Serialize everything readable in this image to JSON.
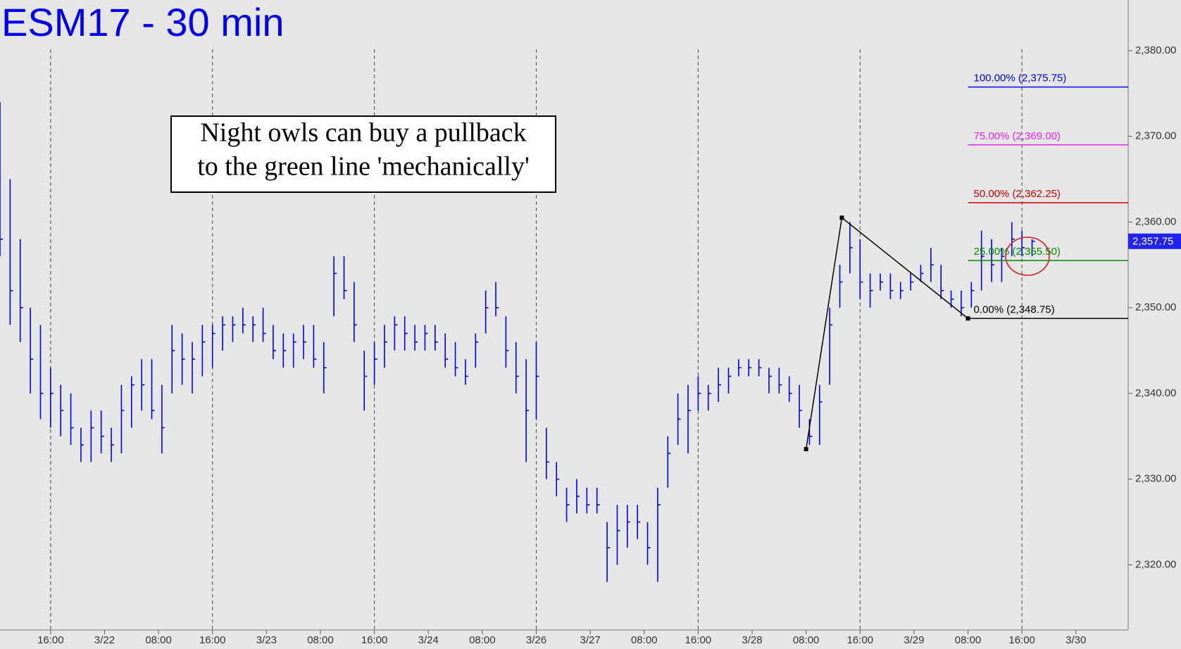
{
  "chart_data": {
    "type": "ohlc",
    "title": "ESM17 - 30 min",
    "annotation": [
      "Night owls can buy a pullback",
      "to the green line 'mechanically'"
    ],
    "color": "#0000ee",
    "series": {
      "x": [
        0,
        3,
        6,
        9,
        12,
        15,
        18,
        21,
        24,
        27,
        30,
        33,
        36,
        39,
        42,
        45,
        48,
        51,
        54,
        57,
        60,
        63,
        66,
        69,
        72,
        75,
        78,
        81,
        84,
        87,
        90,
        93,
        96,
        99,
        102,
        105,
        108,
        111,
        114,
        117,
        120,
        123,
        126,
        129,
        132,
        135,
        138,
        141,
        144,
        147,
        150,
        153,
        156,
        159,
        162,
        165,
        168,
        171,
        174,
        177,
        180,
        183,
        186,
        189,
        192,
        195,
        198,
        201,
        204,
        207,
        210,
        213,
        216,
        219,
        222,
        225,
        228,
        231,
        234,
        237,
        240,
        243,
        246,
        249,
        252,
        255,
        258,
        261,
        264,
        267,
        270,
        273,
        276,
        279,
        282,
        285,
        288,
        291,
        294,
        297,
        300,
        303,
        306
      ],
      "high": [
        2374,
        2365,
        2358,
        2350,
        2348,
        2343,
        2341,
        2340,
        2336,
        2338,
        2338,
        2336,
        2341,
        2342,
        2344,
        2344,
        2341,
        2348,
        2347,
        2346,
        2348,
        2348,
        2349,
        2349,
        2350,
        2349,
        2350,
        2348,
        2347,
        2347,
        2348,
        2348,
        2346,
        2356,
        2356,
        2353,
        2345,
        2346,
        2348,
        2349,
        2349,
        2348,
        2348,
        2348,
        2347,
        2346,
        2344,
        2347,
        2352,
        2353,
        2349,
        2346,
        2344,
        2346,
        2336,
        2332,
        2329,
        2330,
        2329,
        2329,
        2325,
        2327,
        2327,
        2327,
        2325,
        2329,
        2335,
        2340,
        2341,
        2342,
        2341,
        2343,
        2343,
        2344,
        2344,
        2344,
        2343,
        2343,
        2342,
        2341,
        2337,
        2341,
        2350,
        2355,
        2360,
        2358,
        2354,
        2354,
        2354,
        2353,
        2354,
        2355,
        2357,
        2355,
        2352,
        2352,
        2353,
        2359,
        2358,
        2357,
        2360,
        2359,
        2358
      ],
      "low": [
        2356,
        2348,
        2346,
        2340,
        2337,
        2336,
        2335,
        2334,
        2332,
        2332,
        2333,
        2332,
        2333,
        2336,
        2338,
        2337,
        2333,
        2340,
        2341,
        2340,
        2342,
        2343,
        2345,
        2346,
        2347,
        2346,
        2346,
        2344,
        2343,
        2343,
        2344,
        2343,
        2340,
        2349,
        2351,
        2346,
        2338,
        2341,
        2343,
        2345,
        2345,
        2345,
        2345,
        2345,
        2343,
        2342,
        2341,
        2343,
        2347,
        2349,
        2343,
        2340,
        2332,
        2337,
        2330,
        2328,
        2325,
        2326,
        2326,
        2326,
        2318,
        2320,
        2322,
        2323,
        2320,
        2318,
        2329,
        2334,
        2333,
        2338,
        2338,
        2339,
        2340,
        2342,
        2342,
        2342,
        2340,
        2340,
        2339,
        2336,
        2334,
        2334,
        2341,
        2350,
        2354,
        2351,
        2350,
        2352,
        2351,
        2351,
        2352,
        2353,
        2353,
        2351,
        2350,
        2349,
        2350,
        2352,
        2353,
        2353,
        2356,
        2356,
        2356
      ],
      "close": [
        2358,
        2352,
        2350,
        2344,
        2340,
        2340,
        2338,
        2336,
        2334,
        2336,
        2335,
        2334,
        2338,
        2341,
        2341,
        2338,
        2336,
        2345,
        2344,
        2344,
        2346,
        2347,
        2348,
        2348,
        2348,
        2348,
        2347,
        2345,
        2345,
        2346,
        2346,
        2344,
        2343,
        2354,
        2352,
        2348,
        2342,
        2344,
        2346,
        2348,
        2347,
        2346,
        2347,
        2346,
        2344,
        2343,
        2342,
        2346,
        2350,
        2350,
        2345,
        2342,
        2338,
        2342,
        2332,
        2330,
        2327,
        2328,
        2327,
        2327,
        2322,
        2324,
        2325,
        2325,
        2322,
        2327,
        2333,
        2337,
        2338,
        2340,
        2340,
        2341,
        2342,
        2343,
        2343,
        2343,
        2342,
        2341,
        2340,
        2338,
        2335,
        2339,
        2348,
        2353,
        2357,
        2353,
        2352,
        2353,
        2352,
        2352,
        2353,
        2354,
        2355,
        2352,
        2351,
        2350,
        2352,
        2356,
        2355,
        2356,
        2358,
        2357,
        2357.75
      ]
    },
    "levels": [
      {
        "value": 2375.75,
        "label": "100.00% (2,375.75)",
        "color": "#0000ee"
      },
      {
        "value": 2369.0,
        "label": "75.00% (2,369.00)",
        "color": "#ee22ee"
      },
      {
        "value": 2362.25,
        "label": "50.00% (2,362.25)",
        "color": "#cc0000"
      },
      {
        "value": 2355.5,
        "label": "25.00% (2,355.50)",
        "color": "#008800"
      },
      {
        "value": 2348.75,
        "label": "0.00% (2,348.75)",
        "color": "#000000"
      }
    ],
    "levels_start": 287,
    "swing": {
      "x": [
        239,
        249.6,
        287
      ],
      "y": [
        2333.5,
        2360.5,
        2348.75
      ]
    },
    "last": {
      "value": 2357.75,
      "label": "2,357.75"
    },
    "xlim": [
      0,
      334.5
    ],
    "ylim": [
      2312.4,
      2385.9
    ],
    "yticks": [
      {
        "value": 2320,
        "label": "2,320.00"
      },
      {
        "value": 2330,
        "label": "2,330.00"
      },
      {
        "value": 2340,
        "label": "2,340.00"
      },
      {
        "value": 2350,
        "label": "2,350.00"
      },
      {
        "value": 2360,
        "label": "2,360.00"
      },
      {
        "value": 2370,
        "label": "2,370.00"
      },
      {
        "value": 2380,
        "label": "2,380.00"
      }
    ],
    "xticks": [
      {
        "value": 15,
        "label": "16:00",
        "grid": true
      },
      {
        "value": 31,
        "label": "3/22"
      },
      {
        "value": 47,
        "label": "08:00"
      },
      {
        "value": 63,
        "label": "16:00",
        "grid": true
      },
      {
        "value": 79,
        "label": "3/23"
      },
      {
        "value": 95,
        "label": "08:00"
      },
      {
        "value": 111,
        "label": "16:00",
        "grid": true
      },
      {
        "value": 127,
        "label": "3/24"
      },
      {
        "value": 143,
        "label": "08:00"
      },
      {
        "value": 159,
        "label": "3/26",
        "grid": true
      },
      {
        "value": 175,
        "label": "3/27"
      },
      {
        "value": 191,
        "label": "08:00"
      },
      {
        "value": 207,
        "label": "16:00",
        "grid": true
      },
      {
        "value": 223,
        "label": "3/28"
      },
      {
        "value": 239,
        "label": "08:00"
      },
      {
        "value": 255,
        "label": "16:00",
        "grid": true
      },
      {
        "value": 271,
        "label": "3/29"
      },
      {
        "value": 287,
        "label": "08:00"
      },
      {
        "value": 303,
        "label": "16:00",
        "grid": true
      },
      {
        "value": 319,
        "label": "3/30"
      }
    ]
  }
}
